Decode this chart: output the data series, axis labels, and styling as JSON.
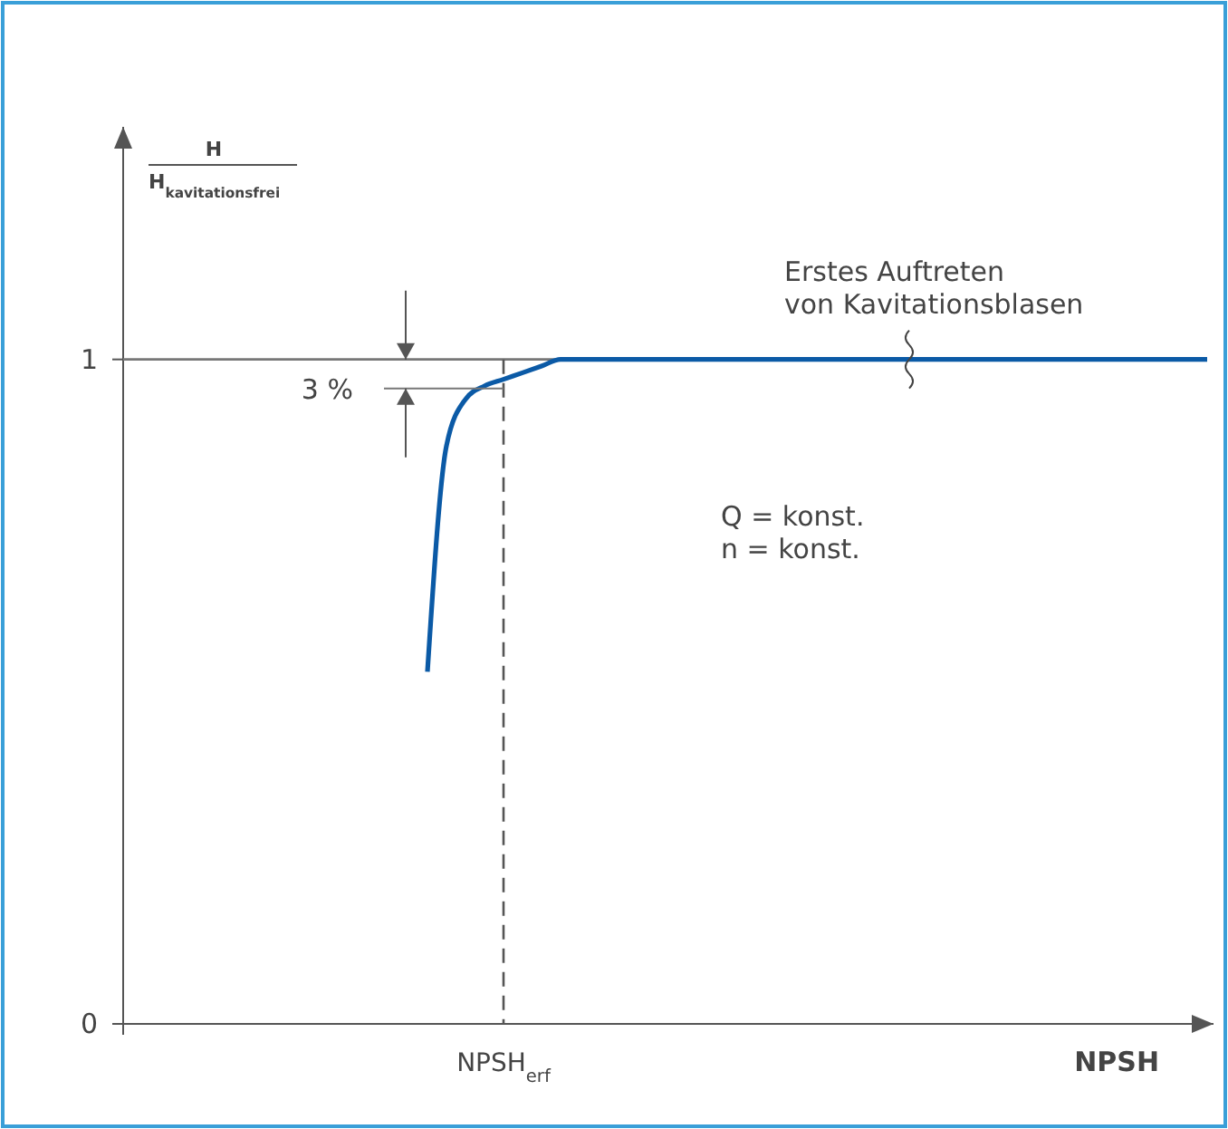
{
  "chart_data": {
    "type": "line",
    "categories": [
      null,
      null,
      null,
      null,
      null,
      null,
      null,
      null,
      null,
      null,
      null,
      null,
      null,
      null,
      null,
      null,
      null,
      null,
      null,
      null,
      "NPSH$_{erf}$",
      null,
      null,
      null,
      null,
      null,
      null,
      null,
      null,
      null,
      null,
      null,
      null,
      null,
      null,
      null,
      null,
      null,
      null,
      null,
      null,
      null,
      null,
      null,
      null,
      null,
      null,
      null,
      null,
      null,
      null,
      null,
      null,
      null,
      null,
      null,
      null,
      null
    ],
    "series": [
      {
        "color": "#0b5aa6",
        "values": [
          null,
          null,
          null,
          null,
          null,
          null,
          null,
          null,
          null,
          null,
          null,
          null,
          null,
          null,
          null,
          null,
          0.53,
          0.87,
          0.94,
          0.96,
          0.97,
          0.98,
          0.99,
          1,
          1,
          1,
          1,
          1,
          1,
          1,
          1,
          1,
          1,
          1,
          1,
          1,
          1,
          1,
          1,
          1,
          1,
          1,
          1,
          1,
          1,
          1,
          1,
          1,
          1,
          1,
          1,
          1,
          1,
          1,
          1,
          1,
          1,
          1
        ]
      }
    ],
    "xlabel": "NPSH",
    "ylabel": "H\nH$_{kavitationsfrei}$",
    "ylim": [
      0,
      1.35
    ],
    "yticks": [
      0,
      1
    ],
    "ref_lines": [
      {
        "axis": "y",
        "value": 1,
        "color": "#777777",
        "line_style": "solid"
      },
      {
        "axis": "x",
        "value": "NPSH$_{erf}$",
        "color": "#555555",
        "line_style": "dashed"
      }
    ],
    "annotations": [
      "3 %",
      "Erstes Auftreten\nvon Kavitationsblasen",
      "Q = konst.\nn = konst."
    ],
    "grid": false,
    "marker": "none",
    "line_style": "solid"
  }
}
